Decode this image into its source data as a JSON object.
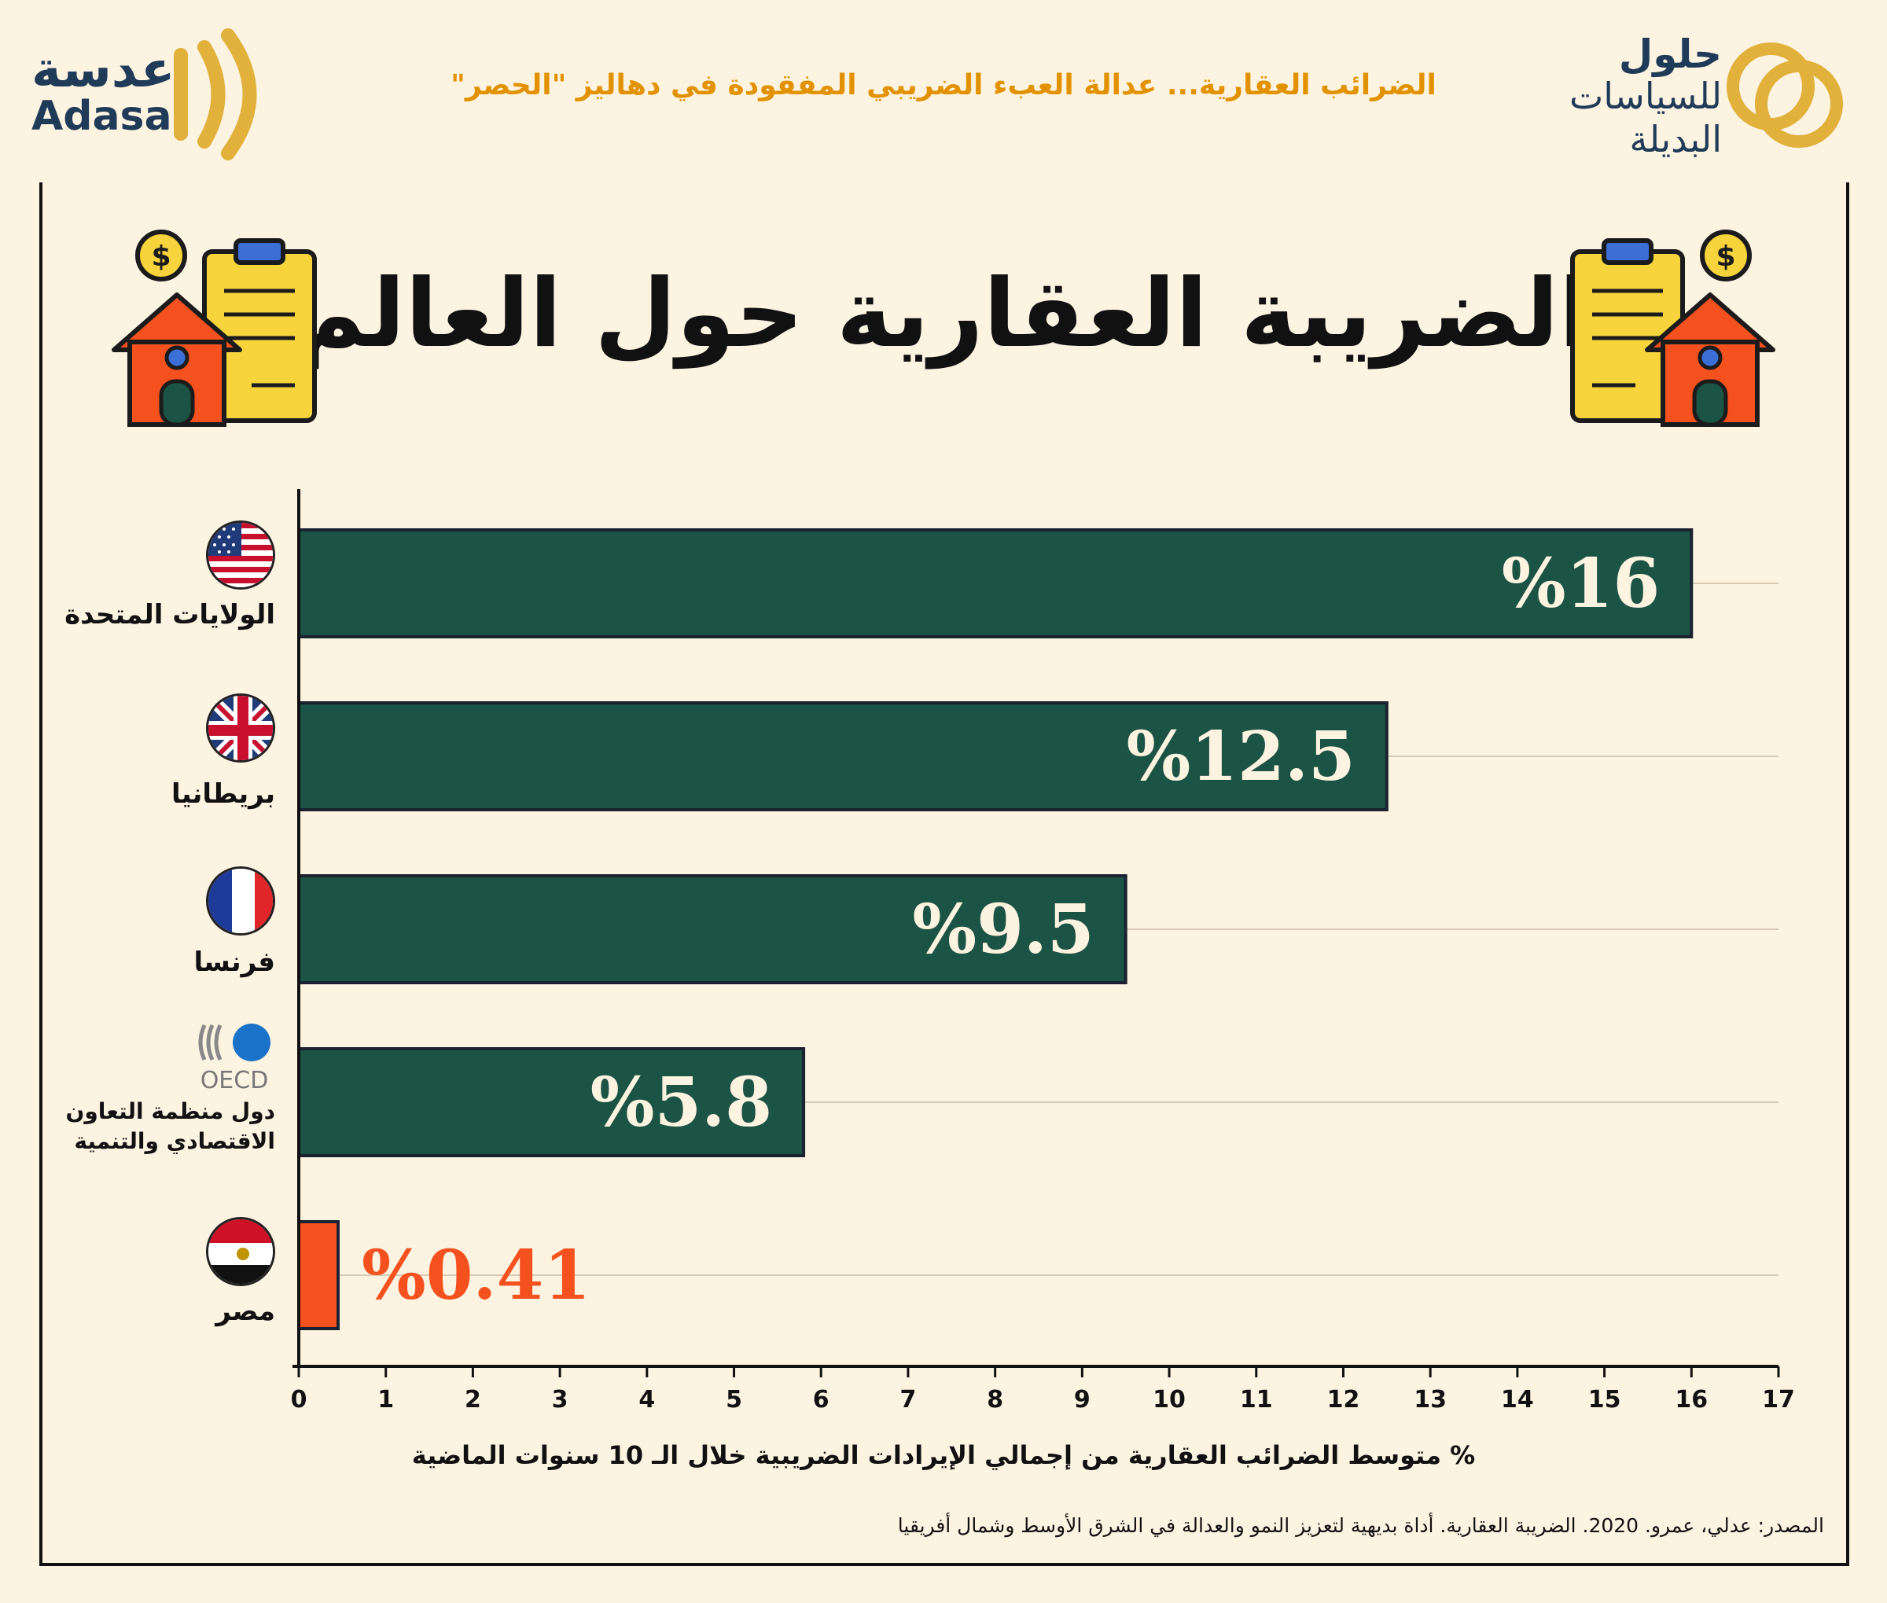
{
  "header": {
    "subtitle": "الضرائب العقارية... عدالة العبء الضريبي المفقودة في دهاليز \"الحصر\"",
    "brand_left_ar": "عدسة",
    "brand_left_en": "Adasa",
    "brand_right_line1": "حلول",
    "brand_right_line2": "للسياسات",
    "brand_right_line3": "البديلة"
  },
  "title": "الضريبة العقارية حول العالم",
  "chart_data": {
    "type": "bar",
    "orientation": "horizontal",
    "categories": [
      "الولايات المتحدة",
      "بريطانيا",
      "فرنسا",
      "دول منظمة التعاون الاقتصادي والتنمية",
      "مصر"
    ],
    "category_lines": [
      [
        "الولايات المتحدة"
      ],
      [
        "بريطانيا"
      ],
      [
        "فرنسا"
      ],
      [
        "دول منظمة التعاون",
        "الاقتصادي والتنمية"
      ],
      [
        "مصر"
      ]
    ],
    "values": [
      16,
      12.5,
      9.5,
      5.8,
      0.41
    ],
    "value_labels": [
      "%16",
      "%12.5",
      "%9.5",
      "%5.8",
      "%0.41"
    ],
    "bar_colors": [
      "#1b5344",
      "#1b5344",
      "#1b5344",
      "#1b5344",
      "#f4511e"
    ],
    "label_colors": [
      "#fdf3e1",
      "#fdf3e1",
      "#fdf3e1",
      "#fdf3e1",
      "#f4511e"
    ],
    "xlim": [
      0,
      17
    ],
    "xticks": [
      "0",
      "1",
      "2",
      "3",
      "4",
      "5",
      "6",
      "7",
      "8",
      "9",
      "10",
      "11",
      "12",
      "13",
      "14",
      "15",
      "16",
      "17"
    ],
    "xlabel": "% متوسط الضرائب العقارية من إجمالي الإيرادات الضريبية خلال الـ 10 سنوات الماضية",
    "grid": true,
    "oecd_logo_text": "OECD"
  },
  "source": "المصدر: عدلي، عمرو. 2020. الضريبة العقارية. أداة بديهية لتعزيز النمو والعدالة في الشرق الأوسط وشمال أفريقيا",
  "colors": {
    "accent": "#e29200",
    "bar": "#1b5344",
    "highlight": "#f4511e",
    "background": "#fdf3e1",
    "brand": "#1f3b57"
  }
}
